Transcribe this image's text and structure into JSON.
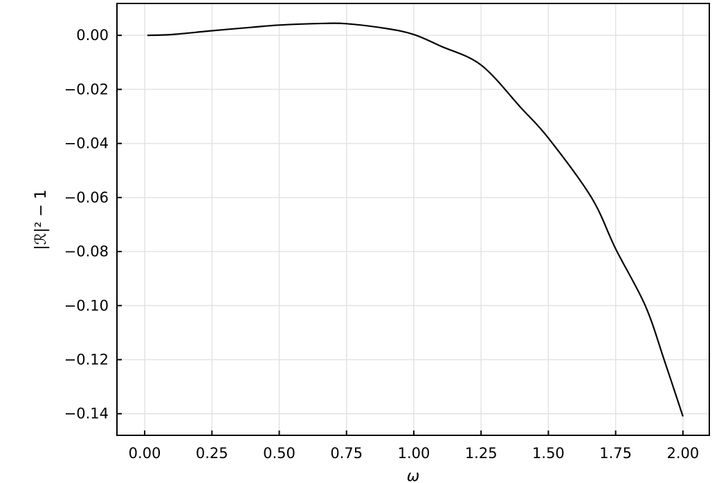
{
  "chart_data": {
    "type": "line",
    "title": "",
    "xlabel": "ω",
    "ylabel": "|ℛ|² − 1",
    "xlim": [
      -0.103,
      2.098
    ],
    "ylim": [
      -0.148,
      0.0118
    ],
    "grid": true,
    "x_ticks": [
      0.0,
      0.25,
      0.5,
      0.75,
      1.0,
      1.25,
      1.5,
      1.75,
      2.0
    ],
    "x_tick_labels": [
      "0.00",
      "0.25",
      "0.50",
      "0.75",
      "1.00",
      "1.25",
      "1.50",
      "1.75",
      "2.00"
    ],
    "y_ticks": [
      0.0,
      -0.02,
      -0.04,
      -0.06,
      -0.08,
      -0.1,
      -0.12,
      -0.14
    ],
    "y_tick_labels": [
      "0.00",
      "−0.02",
      "−0.04",
      "−0.06",
      "−0.08",
      "−0.10",
      "−0.12",
      "−0.14"
    ],
    "series": [
      {
        "color": "#000000",
        "x": [
          0.01,
          0.1,
          0.25,
          0.4,
          0.5,
          0.66,
          0.75,
          0.9,
          1.0,
          1.1,
          1.25,
          1.4,
          1.5,
          1.66,
          1.75,
          1.86,
          1.93,
          2.0
        ],
        "y": [
          0.0,
          0.0003,
          0.0017,
          0.003,
          0.0038,
          0.0044,
          0.0043,
          0.0025,
          0.0003,
          -0.004,
          -0.011,
          -0.027,
          -0.038,
          -0.06,
          -0.079,
          -0.1,
          -0.12,
          -0.141
        ]
      }
    ]
  }
}
